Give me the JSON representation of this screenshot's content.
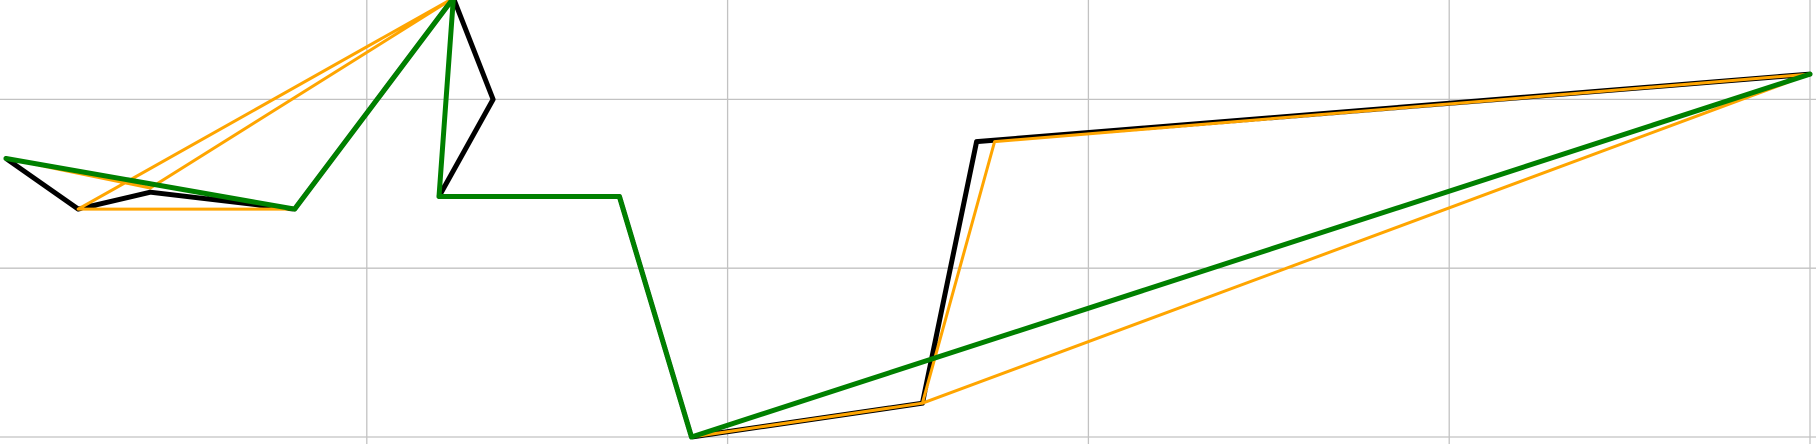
{
  "chart_data": {
    "type": "line",
    "title": "",
    "xlabel": "",
    "ylabel": "",
    "xlim": [
      0,
      25
    ],
    "ylim": [
      -3,
      2.0
    ],
    "grid": true,
    "x_gridlines": [
      5,
      10,
      15,
      20,
      25
    ],
    "y_gridlines": [
      -3,
      -1,
      1
    ],
    "series": [
      {
        "color": "#000000",
        "width": 5,
        "points": [
          [
            0,
            0.3
          ],
          [
            1,
            -0.3
          ],
          [
            2,
            -0.1
          ],
          [
            4,
            -0.3
          ],
          [
            6.2,
            2.2
          ],
          [
            6.75,
            1.0
          ],
          [
            6,
            -0.15
          ],
          [
            8.5,
            -0.15
          ],
          [
            9.5,
            -3.0
          ],
          [
            12.7,
            -2.6
          ],
          [
            13.45,
            0.5
          ],
          [
            25,
            1.3
          ]
        ]
      },
      {
        "color": "#ffa500",
        "width": 3,
        "points": [
          [
            0,
            0.3
          ],
          [
            2,
            -0.05
          ],
          [
            6.2,
            2.2
          ],
          [
            1,
            -0.3
          ],
          [
            4,
            -0.3
          ],
          [
            6.2,
            2.2
          ],
          [
            6,
            -0.15
          ],
          [
            8.5,
            -0.15
          ],
          [
            9.5,
            -3.0
          ],
          [
            12.7,
            -2.6
          ],
          [
            13.7,
            0.5
          ],
          [
            25,
            1.3
          ],
          [
            12.7,
            -2.6
          ]
        ]
      },
      {
        "color": "#008000",
        "width": 5,
        "points": [
          [
            0,
            0.3
          ],
          [
            4,
            -0.3
          ],
          [
            6.2,
            2.2
          ],
          [
            6,
            -0.15
          ],
          [
            8.5,
            -0.15
          ],
          [
            9.5,
            -3.0
          ],
          [
            25,
            1.3
          ]
        ]
      }
    ]
  }
}
